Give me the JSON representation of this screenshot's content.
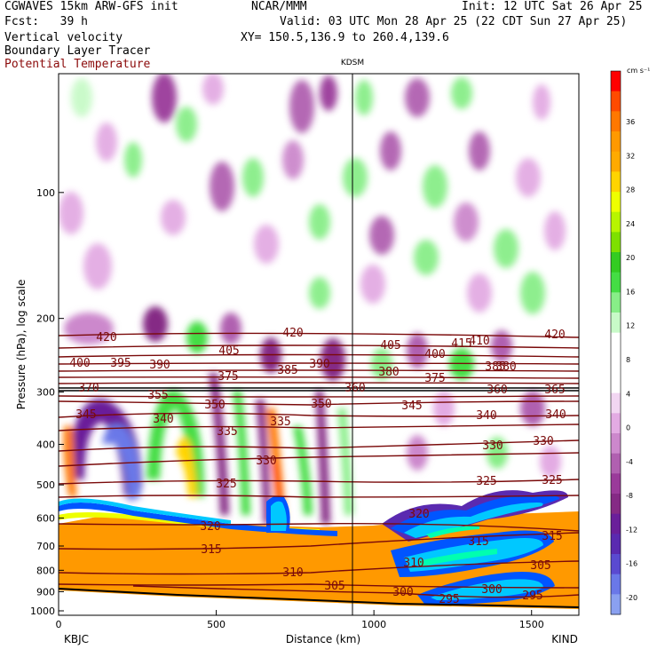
{
  "header": {
    "model": "CGWAVES 15km ARW-GFS init",
    "org": "NCAR/MMM",
    "init": "Init: 12 UTC Sat 26 Apr 25",
    "fcst": "Fcst:   39 h",
    "valid": "Valid: 03 UTC Mon 28 Apr 25 (22 CDT Sun 27 Apr 25)",
    "fields": [
      "Vertical velocity",
      "Boundary Layer Tracer"
    ],
    "field_red": "Potential Temperature",
    "xy": "XY= 150.5,136.9 to 260.4,139.6"
  },
  "chart_data": {
    "type": "heatmap",
    "ylabel": "Pressure (hPa), log scale",
    "xlabel": "Distance (km)",
    "xlim": [
      0,
      1650
    ],
    "y_log_scale": true,
    "x_ticks": [
      0,
      500,
      1000,
      1500
    ],
    "y_ticks": [
      100,
      200,
      300,
      400,
      500,
      600,
      700,
      800,
      900,
      1000
    ],
    "start_station": "KBJC",
    "end_station": "KIND",
    "mid_station": {
      "name": "KDSM",
      "x_km": 935
    },
    "colorbar": {
      "units": "cm s⁻¹",
      "labels": [
        "36",
        "32",
        "28",
        "24",
        "20",
        "16",
        "12",
        "8",
        "4",
        "0",
        "-4",
        "-8",
        "-12",
        "-16",
        "-20"
      ],
      "colors": [
        "#ff0000",
        "#ff4b00",
        "#ff7800",
        "#ff9900",
        "#ffaa00",
        "#ffd400",
        "#eeff00",
        "#b8f500",
        "#7ee000",
        "#33cc22",
        "#44dd44",
        "#88ee88",
        "#c8fac8",
        "#ffffff",
        "#ffffff",
        "#ffffff",
        "#f2d6f2",
        "#e3abe3",
        "#cc88cc",
        "#b060b0",
        "#9a3a9a",
        "#852a85",
        "#6a1f9a",
        "#5a2ab0",
        "#5a4ad0",
        "#6a78e8",
        "#8aa0f0"
      ]
    },
    "theta_labels": [
      "420",
      "420",
      "415",
      "410",
      "420",
      "405",
      "405",
      "400",
      "400",
      "395",
      "390",
      "390",
      "385",
      "385",
      "380",
      "380",
      "375",
      "375",
      "370",
      "360",
      "355",
      "360",
      "365",
      "350",
      "350",
      "345",
      "345",
      "340",
      "340",
      "340",
      "335",
      "335",
      "330",
      "330",
      "330",
      "325",
      "325",
      "325",
      "320",
      "320",
      "315",
      "315",
      "315",
      "310",
      "310",
      "305",
      "305",
      "300",
      "300",
      "295",
      "295"
    ]
  }
}
